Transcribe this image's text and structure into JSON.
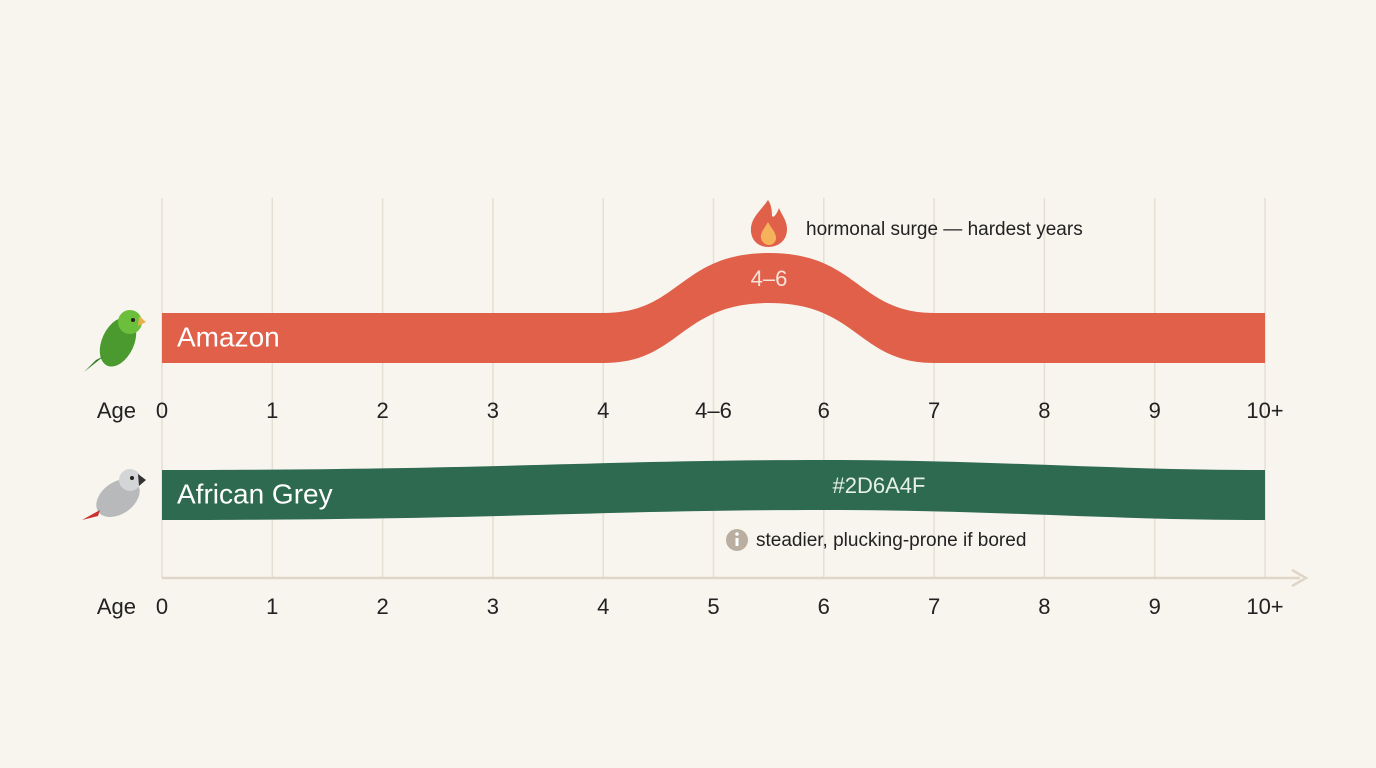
{
  "rows": [
    {
      "label": "Amazon",
      "band_label": "4–6",
      "annotation": "hormonal surge — hardest years",
      "axis_title": "Age",
      "axis_labels": [
        "0",
        "1",
        "2",
        "3",
        "4",
        "4–6",
        "6",
        "7",
        "8",
        "9",
        "10+"
      ]
    },
    {
      "label": "African Grey",
      "band_label": "#2D6A4F",
      "annotation": "steadier, plucking-prone if bored",
      "axis_title": "Age",
      "axis_labels": [
        "0",
        "1",
        "2",
        "3",
        "4",
        "5",
        "6",
        "7",
        "8",
        "9",
        "10+"
      ]
    }
  ]
}
